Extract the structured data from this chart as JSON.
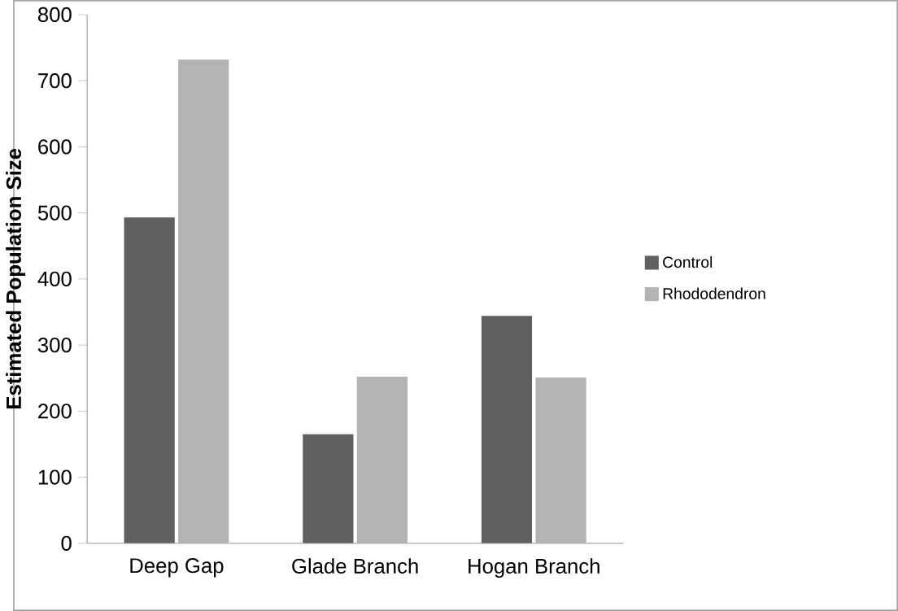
{
  "chart_data": {
    "type": "bar",
    "ylabel": "Estimated Population Size",
    "categories": [
      "Deep Gap",
      "Glade Branch",
      "Hogan Branch"
    ],
    "series": [
      {
        "name": "Control",
        "color": "#606060",
        "values": [
          493,
          165,
          344
        ]
      },
      {
        "name": "Rhododendron",
        "color": "#b3b3b3",
        "values": [
          732,
          252,
          251
        ]
      }
    ],
    "ylim": [
      0,
      800
    ],
    "yticks": [
      0,
      100,
      200,
      300,
      400,
      500,
      600,
      700,
      800
    ],
    "grid": false,
    "legend": "right"
  }
}
